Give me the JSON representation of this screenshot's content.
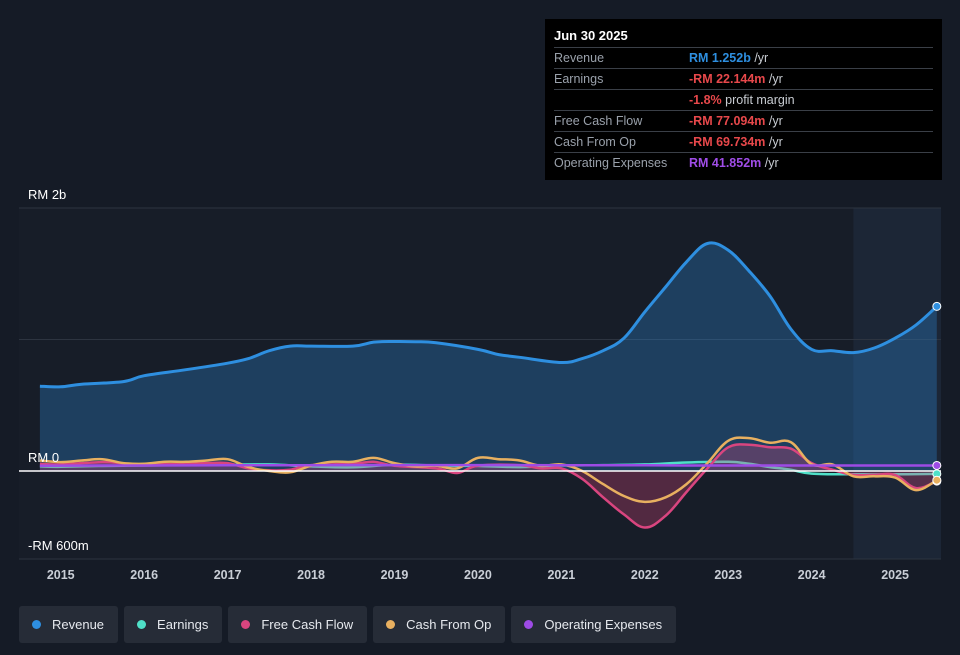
{
  "tooltip": {
    "date": "Jun 30 2025",
    "rows": [
      {
        "label": "Revenue",
        "value": "RM 1.252b",
        "unit": "/yr",
        "color": "#2e8fe0"
      },
      {
        "label": "Earnings",
        "value": "-RM 22.144m",
        "unit": "/yr",
        "color": "#e8484b"
      },
      {
        "label": "",
        "value": "-1.8%",
        "unit": "profit margin",
        "color": "#e8484b"
      },
      {
        "label": "Free Cash Flow",
        "value": "-RM 77.094m",
        "unit": "/yr",
        "color": "#e8484b"
      },
      {
        "label": "Cash From Op",
        "value": "-RM 69.734m",
        "unit": "/yr",
        "color": "#e8484b"
      },
      {
        "label": "Operating Expenses",
        "value": "RM 41.852m",
        "unit": "/yr",
        "color": "#a04de8"
      }
    ]
  },
  "legend": [
    {
      "label": "Revenue",
      "color": "#2e8fe0"
    },
    {
      "label": "Earnings",
      "color": "#4fe0c8"
    },
    {
      "label": "Free Cash Flow",
      "color": "#d9457f"
    },
    {
      "label": "Cash From Op",
      "color": "#e8b060"
    },
    {
      "label": "Operating Expenses",
      "color": "#9d4be5"
    }
  ],
  "chart_data": {
    "type": "area",
    "y_unit": "RM millions",
    "ylim": [
      -600,
      2000
    ],
    "y_tick_labels": [
      {
        "value": 2000,
        "label": "RM 2b"
      },
      {
        "value": 0,
        "label": "RM 0"
      },
      {
        "value": -600,
        "label": "-RM 600m"
      }
    ],
    "x_tick_labels": [
      "2015",
      "2016",
      "2017",
      "2018",
      "2019",
      "2020",
      "2021",
      "2022",
      "2023",
      "2024",
      "2025"
    ],
    "xlim": [
      2014.5,
      2025.55
    ],
    "forecast_shade_start": 2024.5,
    "grid": true,
    "legend_position": "bottom",
    "series": [
      {
        "name": "Revenue",
        "color": "#2e8fe0",
        "fill": true,
        "points": [
          [
            2014.75,
            645
          ],
          [
            2015.0,
            640
          ],
          [
            2015.25,
            660
          ],
          [
            2015.75,
            680
          ],
          [
            2016.0,
            725
          ],
          [
            2016.5,
            770
          ],
          [
            2017.0,
            820
          ],
          [
            2017.25,
            855
          ],
          [
            2017.5,
            915
          ],
          [
            2017.75,
            950
          ],
          [
            2018.0,
            950
          ],
          [
            2018.5,
            950
          ],
          [
            2018.75,
            980
          ],
          [
            2019.0,
            985
          ],
          [
            2019.25,
            983
          ],
          [
            2019.5,
            975
          ],
          [
            2020.0,
            925
          ],
          [
            2020.25,
            885
          ],
          [
            2020.5,
            865
          ],
          [
            2021.0,
            825
          ],
          [
            2021.25,
            855
          ],
          [
            2021.5,
            915
          ],
          [
            2021.75,
            1010
          ],
          [
            2022.0,
            1210
          ],
          [
            2022.25,
            1400
          ],
          [
            2022.5,
            1590
          ],
          [
            2022.75,
            1730
          ],
          [
            2023.0,
            1680
          ],
          [
            2023.25,
            1520
          ],
          [
            2023.5,
            1330
          ],
          [
            2023.75,
            1080
          ],
          [
            2024.0,
            925
          ],
          [
            2024.25,
            915
          ],
          [
            2024.5,
            900
          ],
          [
            2024.75,
            935
          ],
          [
            2025.0,
            1010
          ],
          [
            2025.25,
            1110
          ],
          [
            2025.5,
            1252
          ]
        ]
      },
      {
        "name": "Earnings",
        "color": "#4fe0c8",
        "fill": false,
        "points": [
          [
            2014.75,
            35
          ],
          [
            2015.0,
            32
          ],
          [
            2015.5,
            38
          ],
          [
            2016.0,
            42
          ],
          [
            2016.5,
            45
          ],
          [
            2017.0,
            48
          ],
          [
            2017.5,
            50
          ],
          [
            2018.0,
            35
          ],
          [
            2018.5,
            28
          ],
          [
            2019.0,
            48
          ],
          [
            2019.5,
            42
          ],
          [
            2020.0,
            38
          ],
          [
            2020.5,
            30
          ],
          [
            2021.0,
            42
          ],
          [
            2021.5,
            45
          ],
          [
            2022.0,
            50
          ],
          [
            2022.5,
            65
          ],
          [
            2023.0,
            70
          ],
          [
            2023.25,
            55
          ],
          [
            2023.5,
            30
          ],
          [
            2023.75,
            10
          ],
          [
            2024.0,
            -20
          ],
          [
            2024.5,
            -25
          ],
          [
            2025.0,
            -25
          ],
          [
            2025.5,
            -22
          ]
        ]
      },
      {
        "name": "Free Cash Flow",
        "color": "#d9457f",
        "fill": true,
        "points": [
          [
            2014.75,
            55
          ],
          [
            2015.0,
            50
          ],
          [
            2015.5,
            68
          ],
          [
            2015.75,
            58
          ],
          [
            2016.0,
            50
          ],
          [
            2016.5,
            55
          ],
          [
            2016.75,
            60
          ],
          [
            2017.0,
            60
          ],
          [
            2017.25,
            20
          ],
          [
            2017.5,
            5
          ],
          [
            2017.75,
            10
          ],
          [
            2018.0,
            45
          ],
          [
            2018.5,
            55
          ],
          [
            2018.75,
            70
          ],
          [
            2019.0,
            40
          ],
          [
            2019.5,
            20
          ],
          [
            2019.75,
            -15
          ],
          [
            2020.0,
            40
          ],
          [
            2020.5,
            45
          ],
          [
            2020.75,
            20
          ],
          [
            2021.0,
            20
          ],
          [
            2021.25,
            -60
          ],
          [
            2021.5,
            -200
          ],
          [
            2021.75,
            -330
          ],
          [
            2022.0,
            -430
          ],
          [
            2022.25,
            -340
          ],
          [
            2022.5,
            -160
          ],
          [
            2022.75,
            20
          ],
          [
            2023.0,
            180
          ],
          [
            2023.25,
            200
          ],
          [
            2023.5,
            180
          ],
          [
            2023.75,
            170
          ],
          [
            2024.0,
            60
          ],
          [
            2024.25,
            10
          ],
          [
            2024.5,
            -30
          ],
          [
            2024.75,
            -30
          ],
          [
            2025.0,
            -30
          ],
          [
            2025.25,
            -130
          ],
          [
            2025.5,
            -77
          ]
        ]
      },
      {
        "name": "Cash From Op",
        "color": "#e8b060",
        "fill": false,
        "points": [
          [
            2014.75,
            80
          ],
          [
            2015.0,
            68
          ],
          [
            2015.25,
            80
          ],
          [
            2015.5,
            90
          ],
          [
            2015.75,
            60
          ],
          [
            2016.0,
            55
          ],
          [
            2016.25,
            70
          ],
          [
            2016.5,
            70
          ],
          [
            2016.75,
            80
          ],
          [
            2017.0,
            90
          ],
          [
            2017.25,
            30
          ],
          [
            2017.5,
            0
          ],
          [
            2017.75,
            -10
          ],
          [
            2018.0,
            40
          ],
          [
            2018.25,
            70
          ],
          [
            2018.5,
            70
          ],
          [
            2018.75,
            100
          ],
          [
            2019.0,
            60
          ],
          [
            2019.25,
            35
          ],
          [
            2019.5,
            40
          ],
          [
            2019.75,
            20
          ],
          [
            2020.0,
            100
          ],
          [
            2020.25,
            90
          ],
          [
            2020.5,
            80
          ],
          [
            2020.75,
            40
          ],
          [
            2021.0,
            50
          ],
          [
            2021.25,
            0
          ],
          [
            2021.5,
            -100
          ],
          [
            2021.75,
            -190
          ],
          [
            2022.0,
            -235
          ],
          [
            2022.25,
            -200
          ],
          [
            2022.5,
            -100
          ],
          [
            2022.75,
            60
          ],
          [
            2023.0,
            230
          ],
          [
            2023.25,
            250
          ],
          [
            2023.5,
            215
          ],
          [
            2023.75,
            220
          ],
          [
            2024.0,
            50
          ],
          [
            2024.25,
            50
          ],
          [
            2024.5,
            -40
          ],
          [
            2024.75,
            -40
          ],
          [
            2025.0,
            -50
          ],
          [
            2025.25,
            -145
          ],
          [
            2025.5,
            -70
          ]
        ]
      },
      {
        "name": "Operating Expenses",
        "color": "#9d4be5",
        "fill": false,
        "points": [
          [
            2014.75,
            40
          ],
          [
            2016.0,
            42
          ],
          [
            2017.0,
            43
          ],
          [
            2018.0,
            44
          ],
          [
            2019.0,
            45
          ],
          [
            2020.0,
            45
          ],
          [
            2021.0,
            44
          ],
          [
            2022.0,
            43
          ],
          [
            2023.0,
            42
          ],
          [
            2024.0,
            42
          ],
          [
            2025.0,
            42
          ],
          [
            2025.5,
            42
          ]
        ]
      }
    ],
    "marker_date": "Jun 30 2025"
  }
}
